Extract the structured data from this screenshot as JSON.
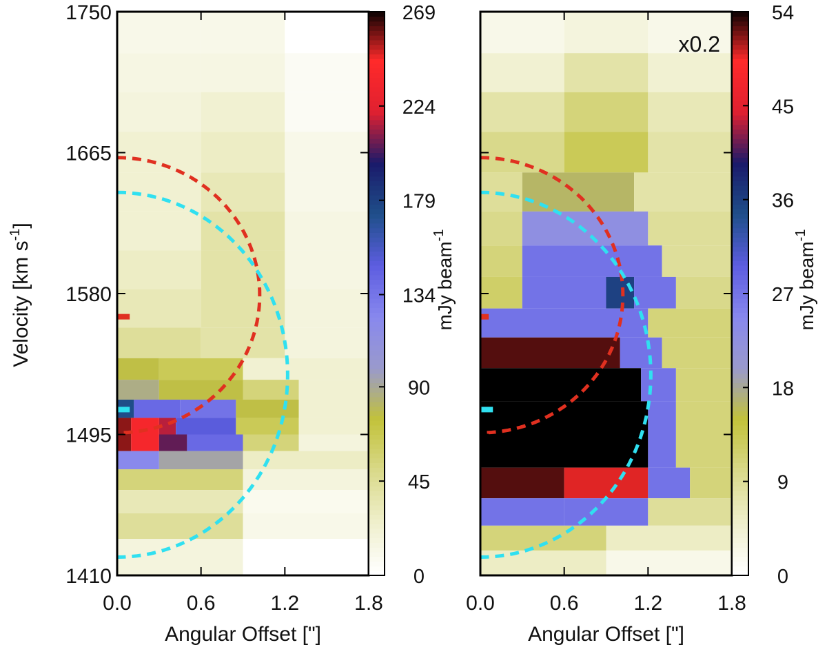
{
  "chart_data": [
    {
      "type": "heatmap",
      "panel": "left",
      "xlabel": "Angular Offset [\"]",
      "ylabel": "Velocity [km s",
      "ylabel_sup": "-1",
      "ylabel_close": "]",
      "xlim": [
        0.0,
        1.8
      ],
      "ylim": [
        1410,
        1750
      ],
      "xticks": [
        "0.0",
        "0.6",
        "1.2",
        "1.8"
      ],
      "yticks": [
        "1410",
        "1495",
        "1580",
        "1665",
        "1750"
      ],
      "colorbar": {
        "label": "mJy beam",
        "label_sup": "-1",
        "range": [
          0,
          269
        ],
        "ticks": [
          "0",
          "45",
          "90",
          "134",
          "179",
          "224",
          "269"
        ]
      },
      "annotation": "",
      "rows": [
        {
          "v": 1737,
          "segments": [
            [
              0,
              0.6,
              0.04
            ],
            [
              0.6,
              1.2,
              0.04
            ],
            [
              1.2,
              1.8,
              0.0
            ]
          ]
        },
        {
          "v": 1713,
          "segments": [
            [
              0,
              0.6,
              0.05
            ],
            [
              0.6,
              1.2,
              0.05
            ],
            [
              1.2,
              1.8,
              0.02
            ]
          ]
        },
        {
          "v": 1690,
          "segments": [
            [
              0,
              0.6,
              0.06
            ],
            [
              0.6,
              1.2,
              0.08
            ],
            [
              1.2,
              1.8,
              0.02
            ]
          ]
        },
        {
          "v": 1665,
          "segments": [
            [
              0,
              0.6,
              0.08
            ],
            [
              0.6,
              1.2,
              0.1
            ],
            [
              1.2,
              1.8,
              0.04
            ]
          ]
        },
        {
          "v": 1641,
          "segments": [
            [
              0,
              0.6,
              0.08
            ],
            [
              0.6,
              1.2,
              0.12
            ],
            [
              1.2,
              1.8,
              0.04
            ]
          ]
        },
        {
          "v": 1618,
          "segments": [
            [
              0,
              0.6,
              0.08
            ],
            [
              0.6,
              1.2,
              0.14
            ],
            [
              1.2,
              1.8,
              0.05
            ]
          ]
        },
        {
          "v": 1594,
          "segments": [
            [
              0,
              0.6,
              0.1
            ],
            [
              0.6,
              1.2,
              0.14
            ],
            [
              1.2,
              1.8,
              0.05
            ]
          ]
        },
        {
          "v": 1571,
          "segments": [
            [
              0,
              0.6,
              0.12
            ],
            [
              0.6,
              1.2,
              0.14
            ],
            [
              1.2,
              1.8,
              0.06
            ]
          ]
        },
        {
          "v": 1548,
          "segments": [
            [
              0,
              0.6,
              0.16
            ],
            [
              0.6,
              1.2,
              0.14
            ],
            [
              1.2,
              1.8,
              0.06
            ]
          ]
        },
        {
          "v": 1534,
          "segments": [
            [
              0,
              0.3,
              0.28
            ],
            [
              0.3,
              0.9,
              0.24
            ],
            [
              0.9,
              1.8,
              0.08
            ]
          ]
        },
        {
          "v": 1522,
          "segments": [
            [
              0,
              0.3,
              0.32
            ],
            [
              0.3,
              0.9,
              0.28
            ],
            [
              0.9,
              1.3,
              0.2
            ],
            [
              1.3,
              1.8,
              0.08
            ]
          ]
        },
        {
          "v": 1510,
          "segments": [
            [
              0,
              0.12,
              0.64
            ],
            [
              0.12,
              0.45,
              0.52
            ],
            [
              0.45,
              0.85,
              0.5
            ],
            [
              0.85,
              1.3,
              0.28
            ],
            [
              1.3,
              1.8,
              0.08
            ]
          ]
        },
        {
          "v": 1500,
          "segments": [
            [
              0,
              0.1,
              0.95
            ],
            [
              0.1,
              0.3,
              0.88
            ],
            [
              0.3,
              0.42,
              0.8
            ],
            [
              0.42,
              0.85,
              0.55
            ],
            [
              0.85,
              1.3,
              0.24
            ],
            [
              1.3,
              1.8,
              0.08
            ]
          ]
        },
        {
          "v": 1490,
          "segments": [
            [
              0,
              0.1,
              0.95
            ],
            [
              0.1,
              0.3,
              0.88
            ],
            [
              0.3,
              0.5,
              0.76
            ],
            [
              0.5,
              0.9,
              0.52
            ],
            [
              0.9,
              1.3,
              0.2
            ],
            [
              1.3,
              1.8,
              0.06
            ]
          ]
        },
        {
          "v": 1480,
          "segments": [
            [
              0,
              0.3,
              0.45
            ],
            [
              0.3,
              0.9,
              0.34
            ],
            [
              0.9,
              1.8,
              0.1
            ]
          ]
        },
        {
          "v": 1468,
          "segments": [
            [
              0,
              0.9,
              0.2
            ],
            [
              0.9,
              1.8,
              0.06
            ]
          ]
        },
        {
          "v": 1455,
          "segments": [
            [
              0,
              0.9,
              0.12
            ],
            [
              0.9,
              1.8,
              0.03
            ]
          ]
        },
        {
          "v": 1440,
          "segments": [
            [
              0,
              0.9,
              0.16
            ],
            [
              0.9,
              1.8,
              0.04
            ]
          ]
        },
        {
          "v": 1424,
          "segments": [
            [
              0,
              0.9,
              0.06
            ],
            [
              0.9,
              1.8,
              0.0
            ]
          ]
        }
      ],
      "overlays": [
        {
          "kind": "dashed-arc",
          "color": "#e03020",
          "center_v": 1579,
          "half_height_v": 83,
          "x_max": 1.02
        },
        {
          "kind": "dashed-arc",
          "color": "#30e0f0",
          "center_v": 1531,
          "half_height_v": 110,
          "x_max": 1.22
        }
      ],
      "markers": [
        {
          "color": "#e03020",
          "v": 1566,
          "x_end": 0.09
        },
        {
          "color": "#30e0f0",
          "v": 1510,
          "x_end": 0.09
        }
      ]
    },
    {
      "type": "heatmap",
      "panel": "right",
      "xlabel": "Angular Offset [\"]",
      "xlim": [
        0.0,
        1.8
      ],
      "ylim": [
        1410,
        1750
      ],
      "xticks": [
        "0.0",
        "0.6",
        "1.2",
        "1.8"
      ],
      "colorbar": {
        "label": "mJy beam",
        "label_sup": "-1",
        "range": [
          0,
          54
        ],
        "ticks": [
          "0",
          "9",
          "18",
          "27",
          "36",
          "45",
          "54"
        ]
      },
      "annotation": "x0.2",
      "rows": [
        {
          "v": 1737,
          "segments": [
            [
              0,
              0.6,
              0.04
            ],
            [
              0.6,
              1.2,
              0.06
            ],
            [
              1.2,
              1.8,
              0.04
            ]
          ]
        },
        {
          "v": 1713,
          "segments": [
            [
              0,
              0.6,
              0.08
            ],
            [
              0.6,
              1.2,
              0.14
            ],
            [
              1.2,
              1.8,
              0.08
            ]
          ]
        },
        {
          "v": 1690,
          "segments": [
            [
              0,
              0.6,
              0.14
            ],
            [
              0.6,
              1.2,
              0.2
            ],
            [
              1.2,
              1.8,
              0.12
            ]
          ]
        },
        {
          "v": 1665,
          "segments": [
            [
              0,
              0.6,
              0.18
            ],
            [
              0.6,
              1.2,
              0.24
            ],
            [
              1.2,
              1.8,
              0.14
            ]
          ]
        },
        {
          "v": 1641,
          "segments": [
            [
              0,
              0.3,
              0.16
            ],
            [
              0.3,
              1.1,
              0.3
            ],
            [
              1.1,
              1.8,
              0.14
            ]
          ]
        },
        {
          "v": 1618,
          "segments": [
            [
              0,
              0.3,
              0.18
            ],
            [
              0.3,
              1.2,
              0.42
            ],
            [
              1.2,
              1.8,
              0.16
            ]
          ]
        },
        {
          "v": 1600,
          "segments": [
            [
              0,
              0.3,
              0.2
            ],
            [
              0.3,
              1.3,
              0.5
            ],
            [
              1.3,
              1.8,
              0.16
            ]
          ]
        },
        {
          "v": 1580,
          "segments": [
            [
              0,
              0.3,
              0.22
            ],
            [
              0.3,
              0.9,
              0.5
            ],
            [
              0.9,
              1.1,
              0.66
            ],
            [
              1.1,
              1.4,
              0.5
            ],
            [
              1.4,
              1.8,
              0.18
            ]
          ]
        },
        {
          "v": 1562,
          "segments": [
            [
              0,
              1.2,
              0.5
            ],
            [
              1.2,
              1.8,
              0.2
            ]
          ]
        },
        {
          "v": 1545,
          "segments": [
            [
              0,
              1.0,
              0.97
            ],
            [
              1.0,
              1.3,
              0.5
            ],
            [
              1.3,
              1.8,
              0.2
            ]
          ]
        },
        {
          "v": 1525,
          "segments": [
            [
              0,
              1.15,
              1.0
            ],
            [
              1.15,
              1.4,
              0.5
            ],
            [
              1.4,
              1.8,
              0.2
            ]
          ]
        },
        {
          "v": 1505,
          "segments": [
            [
              0,
              1.2,
              1.0
            ],
            [
              1.2,
              1.4,
              0.5
            ],
            [
              1.4,
              1.8,
              0.2
            ]
          ]
        },
        {
          "v": 1485,
          "segments": [
            [
              0,
              1.2,
              1.0
            ],
            [
              1.2,
              1.4,
              0.5
            ],
            [
              1.4,
              1.8,
              0.2
            ]
          ]
        },
        {
          "v": 1465,
          "segments": [
            [
              0,
              0.6,
              0.97
            ],
            [
              0.6,
              1.2,
              0.92
            ],
            [
              1.2,
              1.5,
              0.5
            ],
            [
              1.5,
              1.8,
              0.2
            ]
          ]
        },
        {
          "v": 1448,
          "segments": [
            [
              0,
              0.6,
              0.5
            ],
            [
              0.6,
              1.2,
              0.5
            ],
            [
              1.2,
              1.8,
              0.16
            ]
          ]
        },
        {
          "v": 1432,
          "segments": [
            [
              0,
              0.9,
              0.2
            ],
            [
              0.9,
              1.8,
              0.1
            ]
          ]
        },
        {
          "v": 1418,
          "segments": [
            [
              0,
              0.9,
              0.1
            ],
            [
              0.9,
              1.8,
              0.04
            ]
          ]
        }
      ],
      "overlays": [
        {
          "kind": "dashed-arc",
          "color": "#e03020",
          "center_v": 1579,
          "half_height_v": 83,
          "x_max": 1.02
        },
        {
          "kind": "dashed-arc",
          "color": "#30e0f0",
          "center_v": 1531,
          "half_height_v": 110,
          "x_max": 1.22
        }
      ],
      "markers": [
        {
          "color": "#e03020",
          "v": 1566,
          "x_end": 0.06
        },
        {
          "color": "#30e0f0",
          "v": 1510,
          "x_end": 0.09
        }
      ]
    }
  ],
  "colors": {
    "colormap": [
      "#ffffff",
      "#efefcc",
      "#d9d98a",
      "#c2c23a",
      "#9a9acc",
      "#8888ee",
      "#5d5de0",
      "#1f4f8a",
      "#1a1a6a",
      "#e02030",
      "#ff2a2a",
      "#000000"
    ],
    "red_contour": "#e03020",
    "cyan_contour": "#30e0f0"
  }
}
